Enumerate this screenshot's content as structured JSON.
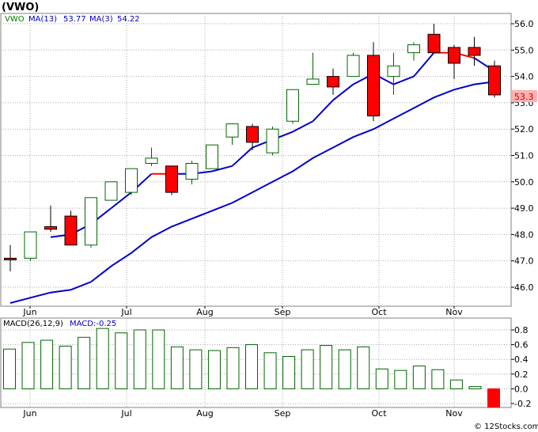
{
  "header": {
    "ticker_label": "(VWO)"
  },
  "footer": {
    "credit": "© 12Stocks.com"
  },
  "chart_data": [
    {
      "type": "candlestick",
      "symbol": "VWO",
      "legend": [
        {
          "label": "VWO",
          "color": "#008000"
        },
        {
          "label": "MA(13)",
          "value": "53.77",
          "color": "#0000cc"
        },
        {
          "label": "MA(3)",
          "value": "54.22",
          "color": "#0000cc"
        }
      ],
      "last_price_label": "53.3",
      "ylim": [
        45.3,
        56.4
      ],
      "yticks": [
        "46.0",
        "47.0",
        "48.0",
        "49.0",
        "50.0",
        "51.0",
        "52.0",
        "53.0",
        "54.0",
        "55.0",
        "56.0"
      ],
      "month_labels": [
        "Jun",
        "Jul",
        "Aug",
        "Sep",
        "Oct",
        "Nov"
      ],
      "colors": {
        "up": "#006400",
        "down": "#ff0000",
        "ma": "#0000cc",
        "ma_down": "#ff0000",
        "grid": "#aaaaaa"
      },
      "candles": [
        {
          "o": 47.1,
          "h": 47.6,
          "l": 46.6,
          "c": 47.1,
          "down": true
        },
        {
          "o": 47.1,
          "h": 48.1,
          "l": 47.0,
          "c": 48.1,
          "down": false
        },
        {
          "o": 48.3,
          "h": 49.1,
          "l": 48.1,
          "c": 48.2,
          "down": true
        },
        {
          "o": 48.7,
          "h": 48.9,
          "l": 47.6,
          "c": 47.6,
          "down": true
        },
        {
          "o": 47.6,
          "h": 49.4,
          "l": 47.5,
          "c": 49.4,
          "down": false
        },
        {
          "o": 49.3,
          "h": 50.0,
          "l": 49.3,
          "c": 50.0,
          "down": false
        },
        {
          "o": 49.6,
          "h": 50.5,
          "l": 49.5,
          "c": 50.5,
          "down": false
        },
        {
          "o": 50.7,
          "h": 51.3,
          "l": 50.6,
          "c": 50.9,
          "down": false
        },
        {
          "o": 50.6,
          "h": 50.6,
          "l": 49.5,
          "c": 49.6,
          "down": true
        },
        {
          "o": 50.1,
          "h": 50.8,
          "l": 49.9,
          "c": 50.7,
          "down": false
        },
        {
          "o": 50.5,
          "h": 51.4,
          "l": 50.5,
          "c": 51.4,
          "down": false
        },
        {
          "o": 51.7,
          "h": 52.2,
          "l": 51.4,
          "c": 52.2,
          "down": false
        },
        {
          "o": 52.1,
          "h": 52.2,
          "l": 51.2,
          "c": 51.5,
          "down": true
        },
        {
          "o": 51.1,
          "h": 52.1,
          "l": 51.0,
          "c": 52.0,
          "down": false
        },
        {
          "o": 52.3,
          "h": 53.5,
          "l": 52.2,
          "c": 53.5,
          "down": false
        },
        {
          "o": 53.7,
          "h": 54.9,
          "l": 53.7,
          "c": 53.9,
          "down": false
        },
        {
          "o": 54.0,
          "h": 54.3,
          "l": 53.3,
          "c": 53.6,
          "down": true
        },
        {
          "o": 54.0,
          "h": 54.9,
          "l": 54.0,
          "c": 54.8,
          "down": false
        },
        {
          "o": 54.8,
          "h": 55.3,
          "l": 52.3,
          "c": 52.5,
          "down": true
        },
        {
          "o": 54.0,
          "h": 54.9,
          "l": 53.3,
          "c": 54.4,
          "down": false
        },
        {
          "o": 54.9,
          "h": 55.3,
          "l": 54.6,
          "c": 55.2,
          "down": false
        },
        {
          "o": 55.6,
          "h": 56.0,
          "l": 54.9,
          "c": 54.9,
          "down": true
        },
        {
          "o": 55.1,
          "h": 55.2,
          "l": 53.9,
          "c": 54.5,
          "down": true
        },
        {
          "o": 55.1,
          "h": 55.5,
          "l": 54.4,
          "c": 54.8,
          "down": true
        },
        {
          "o": 54.4,
          "h": 54.6,
          "l": 53.2,
          "c": 53.3,
          "down": true
        }
      ],
      "ma3": [
        null,
        null,
        47.9,
        48.0,
        48.4,
        49.0,
        49.6,
        50.3,
        50.3,
        50.3,
        50.4,
        50.6,
        51.3,
        51.6,
        51.9,
        52.3,
        53.1,
        53.7,
        54.1,
        53.7,
        54.0,
        54.9,
        54.9,
        54.7,
        54.2
      ],
      "ma3_segments_down": [
        8,
        22,
        23
      ],
      "ma13": [
        45.4,
        45.6,
        45.8,
        45.9,
        46.2,
        46.8,
        47.3,
        47.9,
        48.3,
        48.6,
        48.9,
        49.2,
        49.6,
        50.0,
        50.4,
        50.9,
        51.3,
        51.7,
        52.0,
        52.4,
        52.8,
        53.2,
        53.5,
        53.7,
        53.8
      ]
    },
    {
      "type": "bar",
      "title": "MACD(26,12,9)",
      "value_label": "MACD:-0.25",
      "ylim": [
        -0.33,
        0.9
      ],
      "yticks": [
        "0.8",
        "0.6",
        "0.4",
        "0.2",
        "0.0",
        "-0.2"
      ],
      "values": [
        0.54,
        0.63,
        0.66,
        0.58,
        0.7,
        0.82,
        0.76,
        0.8,
        0.8,
        0.57,
        0.53,
        0.52,
        0.56,
        0.6,
        0.49,
        0.44,
        0.53,
        0.59,
        0.53,
        0.57,
        0.27,
        0.25,
        0.31,
        0.26,
        0.12,
        0.03,
        -0.25
      ],
      "colors": {
        "positive": "#006400",
        "negative": "#ff0000"
      }
    }
  ]
}
